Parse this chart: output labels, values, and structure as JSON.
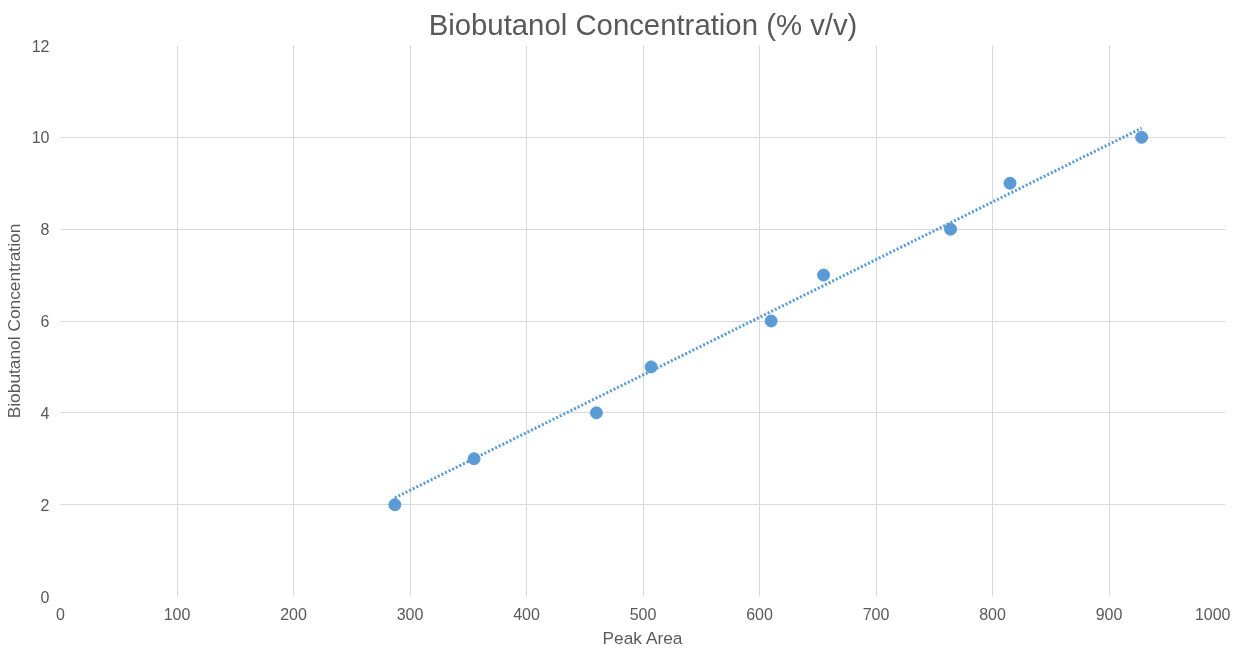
{
  "chart_data": {
    "type": "scatter",
    "title": "Biobutanol Concentration (% v/v)",
    "xlabel": "Peak Area",
    "ylabel": "Biobutanol Concentration",
    "xlim": [
      0,
      1000
    ],
    "xticks": [
      0,
      100,
      200,
      300,
      400,
      500,
      600,
      700,
      800,
      900,
      1000
    ],
    "ylim": [
      0,
      12
    ],
    "yticks": [
      0,
      2,
      4,
      6,
      8,
      10,
      12
    ],
    "grid": true,
    "marker": "circle",
    "series": [
      {
        "color": "#5b9bd5",
        "x": [
          287,
          355,
          460,
          507,
          610,
          655,
          764,
          815,
          928
        ],
        "values": [
          2,
          3,
          4,
          5,
          6,
          7,
          8,
          9,
          10
        ]
      },
      {
        "type": "line",
        "marker": "none",
        "color": "#5b9bd5",
        "line_style": "dotted",
        "x": [
          287,
          928
        ],
        "values": [
          2.15,
          10.2
        ]
      }
    ]
  }
}
